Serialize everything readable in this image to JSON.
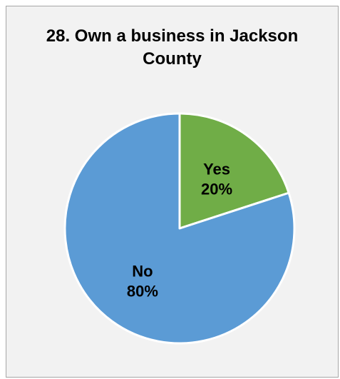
{
  "chart_data": {
    "type": "pie",
    "title": "28. Own a business in Jackson County",
    "slices": [
      {
        "label": "Yes",
        "value": 20,
        "value_label": "20%",
        "color": "#70ad47"
      },
      {
        "label": "No",
        "value": 80,
        "value_label": "80%",
        "color": "#5b9bd5"
      }
    ],
    "start": "12 o'clock, clockwise",
    "legend": "none",
    "data_labels": "inside"
  }
}
